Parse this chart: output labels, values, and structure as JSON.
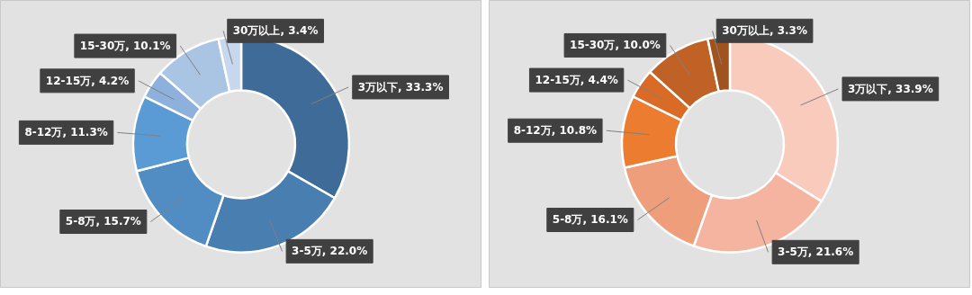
{
  "chart_data": [
    {
      "type": "donut",
      "categories": [
        "3万以下",
        "3-5万",
        "5-8万",
        "8-12万",
        "12-15万",
        "15-30万",
        "30万以上"
      ],
      "values": [
        33.3,
        22.0,
        15.7,
        11.3,
        4.2,
        10.1,
        3.4
      ],
      "value_labels": [
        "33.3%",
        "22.0%",
        "15.7%",
        "11.3%",
        "4.2%",
        "10.1%",
        "3.4%"
      ],
      "colors": [
        "#3e6b97",
        "#487eb0",
        "#518dc3",
        "#5b9bd5",
        "#8db0dd",
        "#aac4e4",
        "#c6d7ee"
      ]
    },
    {
      "type": "donut",
      "categories": [
        "3万以下",
        "3-5万",
        "5-8万",
        "8-12万",
        "12-15万",
        "15-30万",
        "30万以上"
      ],
      "values": [
        33.9,
        21.6,
        16.1,
        10.8,
        4.4,
        10.0,
        3.3
      ],
      "value_labels": [
        "33.9%",
        "21.6%",
        "16.1%",
        "10.8%",
        "4.4%",
        "10.0%",
        "3.3%"
      ],
      "colors": [
        "#f8cbbd",
        "#f4b49f",
        "#ef9e7b",
        "#ec7c30",
        "#d96b27",
        "#c06126",
        "#a1531f"
      ]
    }
  ]
}
